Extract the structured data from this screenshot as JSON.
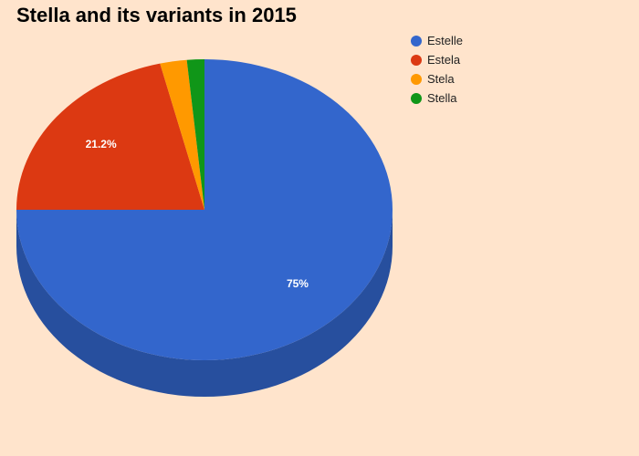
{
  "chart_data": {
    "type": "pie",
    "title": "Stella and its variants in 2015",
    "slices": [
      {
        "name": "Estelle",
        "value": 75,
        "label": "75%",
        "color": "#3366cc",
        "side_color": "#274f9e"
      },
      {
        "name": "Estela",
        "value": 21.2,
        "label": "21.2%",
        "color": "#dc3912",
        "side_color": "#a82b0e"
      },
      {
        "name": "Stela",
        "value": 2.3,
        "label": "",
        "color": "#ff9900",
        "side_color": "#c47600"
      },
      {
        "name": "Stella",
        "value": 1.5,
        "label": "",
        "color": "#109618",
        "side_color": "#0c7312"
      }
    ],
    "legend_position": "top-right",
    "three_d": true
  }
}
